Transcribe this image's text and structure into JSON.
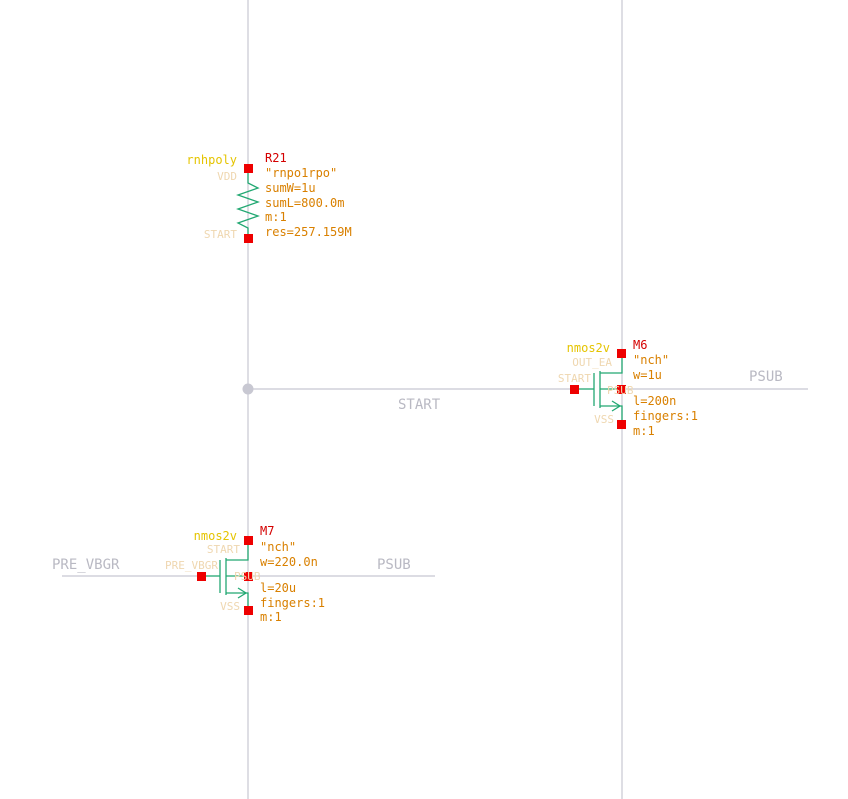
{
  "nets": {
    "start": "START",
    "psub_m6": "PSUB",
    "psub_m7": "PSUB",
    "pre_vbgr": "PRE_VBGR"
  },
  "r21": {
    "cell": "rnhpoly",
    "name": "R21",
    "params": [
      "\"rnpo1rpo\"",
      "sumW=1u",
      "sumL=800.0m",
      "m:1",
      "res=257.159M"
    ],
    "term_top": "VDD",
    "term_bottom": "START"
  },
  "m6": {
    "cell": "nmos2v",
    "name": "M6",
    "params": [
      "\"nch\"",
      "w=1u",
      "l=200n",
      "fingers:1",
      "m:1"
    ],
    "term_drain": "OUT_EA",
    "term_gate": "START",
    "term_bulk": "PSUB",
    "term_source": "VSS"
  },
  "m7": {
    "cell": "nmos2v",
    "name": "M7",
    "params": [
      "\"nch\"",
      "w=220.0n",
      "l=20u",
      "fingers:1",
      "m:1"
    ],
    "term_drain": "START",
    "term_gate": "PRE_VBGR",
    "term_bulk": "PSUB",
    "term_source": "VSS"
  },
  "colors": {
    "wire": "#c8c8d2",
    "symbol": "#22a872",
    "pin": "#ee0000",
    "instance_name": "#d40000",
    "cell_name": "#e5c400",
    "param": "#d98000"
  }
}
